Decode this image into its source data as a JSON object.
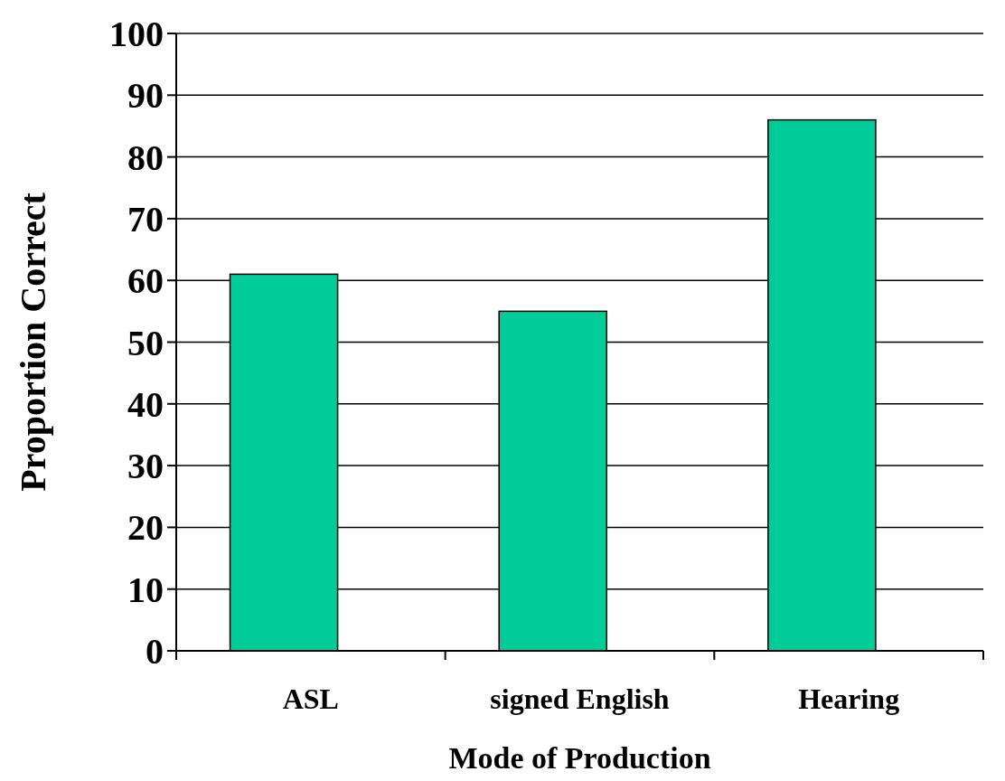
{
  "chart_data": {
    "type": "bar",
    "xlabel": "Mode of Production",
    "ylabel": "Proportion Correct",
    "categories": [
      "ASL",
      "signed English",
      "Hearing"
    ],
    "values": [
      61,
      55,
      86
    ],
    "color": "#00cc99",
    "ylim": [
      0,
      100
    ],
    "yticks": [
      0,
      10,
      20,
      30,
      40,
      50,
      60,
      70,
      80,
      90,
      100
    ],
    "grid": "y"
  }
}
